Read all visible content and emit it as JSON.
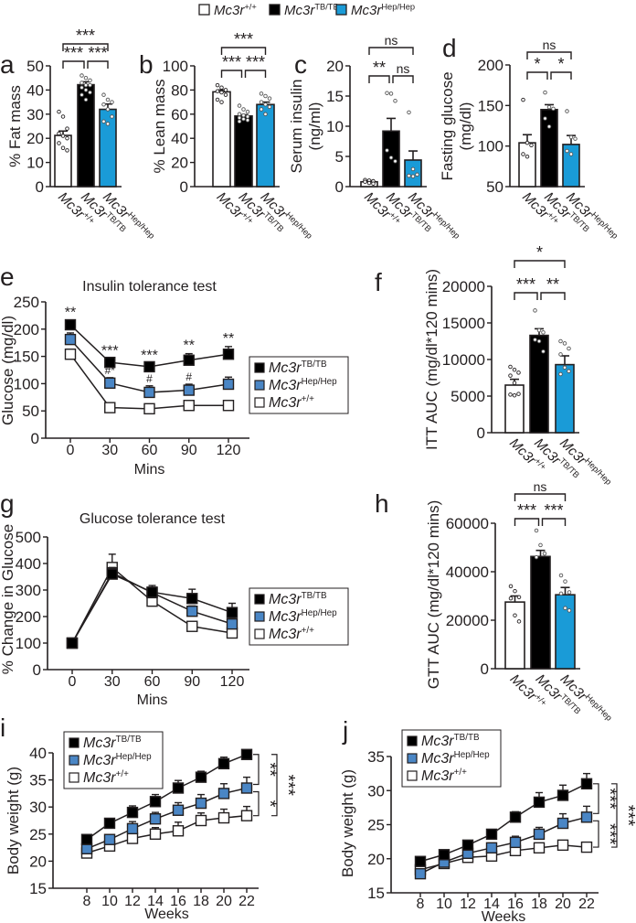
{
  "colors": {
    "wt": "#ffffff",
    "tb": "#000000",
    "hep_bar": "#1a9bd7",
    "hep_line": "#4a86c5",
    "stroke": "#231f20"
  },
  "legend": [
    {
      "key": "wt",
      "base": "Mc3r",
      "sup": "+/+"
    },
    {
      "key": "tb",
      "base": "Mc3r",
      "sup": "TB/TB"
    },
    {
      "key": "hep",
      "base": "Mc3r",
      "sup": "Hep/Hep"
    }
  ],
  "line_legend_order": [
    "tb",
    "hep",
    "wt"
  ],
  "chart_data": [
    {
      "id": "a",
      "type": "bar",
      "letter": "a",
      "ylabel": [
        "% Fat mass"
      ],
      "ylim": [
        0,
        50
      ],
      "ticks": [
        0,
        10,
        20,
        30,
        40,
        50
      ],
      "values": [
        21.2,
        42.2,
        32.0
      ],
      "sem": [
        1.8,
        1.2,
        2.2
      ],
      "points": [
        [
          31,
          29,
          24,
          22,
          21,
          20,
          18,
          16,
          15
        ],
        [
          46,
          45,
          44,
          43,
          42,
          42,
          41,
          40,
          39,
          38,
          36
        ],
        [
          38,
          36,
          35,
          34,
          32,
          29,
          27,
          26
        ]
      ],
      "sig": {
        "low": [
          "***",
          "***"
        ],
        "high": "***"
      }
    },
    {
      "id": "b",
      "type": "bar",
      "letter": "b",
      "ylabel": [
        "% Lean mass"
      ],
      "ylim": [
        0,
        100
      ],
      "ticks": [
        0,
        20,
        40,
        60,
        80,
        100
      ],
      "values": [
        78.5,
        58.5,
        68.0
      ],
      "sem": [
        1.5,
        1.0,
        2.0
      ],
      "points": [
        [
          84,
          82,
          80,
          79,
          78,
          76,
          72,
          70
        ],
        [
          67,
          64,
          62,
          60,
          59,
          58,
          57,
          56,
          55,
          54
        ],
        [
          77,
          75,
          73,
          70,
          68,
          66,
          64,
          60
        ]
      ],
      "sig": {
        "low": [
          "***",
          "***"
        ],
        "high": "***"
      }
    },
    {
      "id": "c",
      "type": "bar",
      "letter": "c",
      "ylabel": [
        "Serum insulin",
        "(ng/ml)"
      ],
      "ylim": [
        0,
        20
      ],
      "ticks": [
        0,
        5,
        10,
        15,
        20
      ],
      "values": [
        0.8,
        9.2,
        4.4
      ],
      "sem": [
        0.2,
        2.1,
        1.5
      ],
      "points": [
        [
          1.1,
          1.0,
          0.9,
          0.8,
          0.6,
          0.5
        ],
        [
          15.5,
          15.4,
          14.2,
          6.0,
          4.8,
          4.2
        ],
        [
          12.3,
          2.9,
          2.0,
          1.8,
          1.7
        ]
      ],
      "sig": {
        "low": [
          "**",
          "ns"
        ],
        "high": "ns"
      }
    },
    {
      "id": "d",
      "type": "bar",
      "letter": "d",
      "ylabel": [
        "Fasting glucose",
        "(mg/dl)"
      ],
      "ylim": [
        50,
        200
      ],
      "ticks": [
        50,
        100,
        150,
        200
      ],
      "values": [
        104,
        145,
        102
      ],
      "sem": [
        10,
        6,
        11
      ],
      "points": [
        [
          157,
          104,
          101,
          90,
          87
        ],
        [
          166,
          148,
          146,
          134,
          124
        ],
        [
          143,
          111,
          109,
          94,
          90
        ]
      ],
      "sig": {
        "low": [
          "*",
          "*"
        ],
        "high": "ns"
      }
    },
    {
      "id": "e",
      "type": "line",
      "letter": "e",
      "title": "Insulin tolerance test",
      "ylabel": [
        "Glucose (mg/dl)"
      ],
      "xlabel": "Mins",
      "x": [
        0,
        30,
        60,
        90,
        120
      ],
      "ylim": [
        0,
        250
      ],
      "ticks": [
        0,
        50,
        100,
        150,
        200,
        250
      ],
      "series": [
        {
          "key": "tb",
          "values": [
            208,
            139,
            131,
            143,
            154
          ],
          "sem": [
            8,
            6,
            6,
            12,
            14
          ],
          "annot": [
            "**",
            "***",
            "***",
            "**",
            "**"
          ]
        },
        {
          "key": "hep",
          "values": [
            181,
            101,
            84,
            88,
            99
          ],
          "sem": [
            12,
            10,
            12,
            11,
            13
          ],
          "annot": [
            "",
            "#*",
            "#",
            "#",
            ""
          ]
        },
        {
          "key": "wt",
          "values": [
            154,
            56,
            54,
            60,
            60
          ],
          "sem": [
            4,
            3,
            3,
            3,
            3
          ],
          "annot": [
            "",
            "",
            "",
            "",
            ""
          ]
        }
      ]
    },
    {
      "id": "f",
      "type": "bar",
      "letter": "f",
      "ylabel": [
        "ITT AUC (mg/dl*120 mins)"
      ],
      "ylim": [
        0,
        20000
      ],
      "ticks": [
        0,
        5000,
        10000,
        15000,
        20000
      ],
      "values": [
        6500,
        13300,
        9300
      ],
      "sem": [
        800,
        900,
        1200
      ],
      "points": [
        [
          9000,
          8600,
          8200,
          7800,
          6800,
          5300,
          5200,
          5100
        ],
        [
          16700,
          14000,
          13700,
          12700,
          12500,
          11100
        ],
        [
          12500,
          12200,
          11500,
          10700,
          8900,
          8400,
          8000
        ]
      ],
      "sig": {
        "low": [
          "***",
          "**"
        ],
        "high": "*"
      }
    },
    {
      "id": "g",
      "type": "line",
      "letter": "g",
      "title": "Glucose tolerance test",
      "ylabel": [
        "% Change in Glucose"
      ],
      "xlabel": "Mins",
      "x": [
        0,
        30,
        60,
        90,
        120
      ],
      "ylim": [
        0,
        500
      ],
      "ticks": [
        0,
        100,
        200,
        300,
        400,
        500
      ],
      "series": [
        {
          "key": "tb",
          "values": [
            100,
            360,
            292,
            268,
            215
          ],
          "sem": [
            5,
            20,
            25,
            35,
            35
          ],
          "annot": [
            "",
            "",
            "",
            "",
            ""
          ]
        },
        {
          "key": "hep",
          "values": [
            100,
            365,
            290,
            220,
            172
          ],
          "sem": [
            5,
            20,
            20,
            20,
            20
          ],
          "annot": [
            "",
            "",
            "",
            "",
            ""
          ]
        },
        {
          "key": "wt",
          "values": [
            100,
            385,
            258,
            163,
            138
          ],
          "sem": [
            5,
            50,
            15,
            12,
            10
          ],
          "annot": [
            "",
            "",
            "",
            "",
            ""
          ]
        }
      ]
    },
    {
      "id": "h",
      "type": "bar",
      "letter": "h",
      "ylabel": [
        "GTT AUC (mg/dl*120 mins)"
      ],
      "ylim": [
        0,
        60000
      ],
      "ticks": [
        0,
        20000,
        40000,
        60000
      ],
      "values": [
        27500,
        46300,
        30500
      ],
      "sem": [
        2500,
        2500,
        3000
      ],
      "points": [
        [
          34000,
          32000,
          29500,
          29000,
          22000,
          19500
        ],
        [
          57000,
          51000,
          47500,
          46000
        ],
        [
          38500,
          36000,
          31500,
          31000,
          25000,
          24000
        ]
      ],
      "sig": {
        "low": [
          "***",
          "***"
        ],
        "high": "ns"
      }
    },
    {
      "id": "i",
      "type": "line",
      "letter": "i",
      "ylabel": [
        "Body weight (g)"
      ],
      "xlabel": "Weeks",
      "x": [
        8,
        10,
        12,
        14,
        16,
        18,
        20,
        22
      ],
      "ylim": [
        15,
        40
      ],
      "ticks": [
        15,
        20,
        25,
        30,
        35,
        40
      ],
      "series": [
        {
          "key": "tb",
          "values": [
            24,
            27,
            29,
            31,
            33.5,
            35.5,
            38,
            39.7
          ],
          "sem": [
            0.4,
            0.5,
            1.2,
            1.3,
            1.4,
            1.1,
            1.2,
            0.6
          ]
        },
        {
          "key": "hep",
          "values": [
            22.3,
            24,
            26,
            27.8,
            29.4,
            30.7,
            32.5,
            33.5
          ],
          "sem": [
            0.4,
            0.6,
            1.3,
            1.2,
            1.4,
            1.6,
            1.8,
            2.0
          ]
        },
        {
          "key": "wt",
          "values": [
            21.5,
            22.8,
            24.2,
            25,
            25.6,
            27.5,
            28,
            28.4
          ],
          "sem": [
            0.4,
            0.5,
            0.9,
            1.2,
            1.6,
            1.4,
            1.6,
            1.7
          ]
        }
      ],
      "sig": {
        "tb_hep": "**",
        "hep_wt": "*",
        "tb_wt": "***"
      }
    },
    {
      "id": "j",
      "type": "line",
      "letter": "j",
      "ylabel": [
        "Body weight (g)"
      ],
      "xlabel": "Weeks",
      "x": [
        8,
        10,
        12,
        14,
        16,
        18,
        20,
        22
      ],
      "ylim": [
        15,
        35
      ],
      "ticks": [
        15,
        20,
        25,
        30,
        35
      ],
      "series": [
        {
          "key": "tb",
          "values": [
            19.6,
            20.6,
            22,
            23.6,
            26.1,
            28.3,
            29.3,
            31
          ],
          "sem": [
            0.4,
            0.4,
            0.5,
            0.6,
            0.8,
            1.4,
            1.5,
            1.5
          ]
        },
        {
          "key": "hep",
          "values": [
            17.8,
            19.5,
            20.8,
            21.6,
            22.4,
            23.6,
            25.2,
            26.1
          ],
          "sem": [
            0.3,
            0.4,
            0.5,
            0.7,
            0.9,
            1.0,
            1.4,
            1.6
          ]
        },
        {
          "key": "wt",
          "values": [
            18.4,
            19.3,
            20.2,
            20.4,
            21.2,
            21.6,
            22,
            21.7
          ],
          "sem": [
            0.3,
            0.3,
            0.4,
            0.4,
            0.4,
            0.4,
            0.4,
            0.4
          ]
        }
      ],
      "sig": {
        "tb_hep": "***",
        "hep_wt": "***",
        "tb_wt": "***"
      }
    }
  ]
}
